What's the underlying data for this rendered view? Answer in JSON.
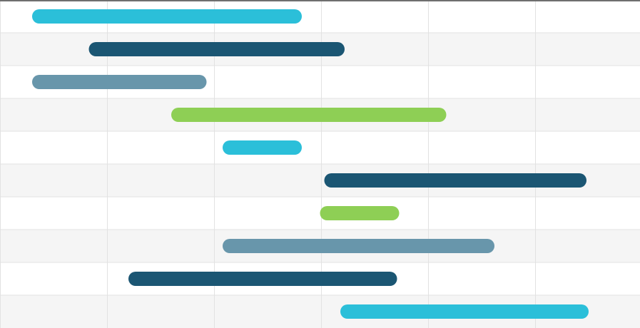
{
  "chart_data": {
    "type": "bar",
    "orientation": "horizontal-range",
    "title": "",
    "xlabel": "",
    "ylabel": "",
    "grid": true,
    "x_range": [
      0,
      6
    ],
    "row_count": 10,
    "row_colors": [
      "#ffffff",
      "#f5f5f5"
    ],
    "grid_color": "#e2e2e2",
    "top_border_color": "#6f6f6f",
    "palette": {
      "cyan": "#2bbfd9",
      "navy": "#1b5673",
      "slate": "#6896ab",
      "green": "#8ecf55"
    },
    "tasks": [
      {
        "start": 0.3,
        "end": 2.82,
        "color": "cyan"
      },
      {
        "start": 0.83,
        "end": 3.22,
        "color": "navy"
      },
      {
        "start": 0.3,
        "end": 1.93,
        "color": "slate"
      },
      {
        "start": 1.6,
        "end": 4.17,
        "color": "green"
      },
      {
        "start": 2.08,
        "end": 2.82,
        "color": "cyan"
      },
      {
        "start": 3.03,
        "end": 5.48,
        "color": "navy"
      },
      {
        "start": 2.99,
        "end": 3.73,
        "color": "green"
      },
      {
        "start": 2.08,
        "end": 4.62,
        "color": "slate"
      },
      {
        "start": 1.2,
        "end": 3.71,
        "color": "navy"
      },
      {
        "start": 3.18,
        "end": 5.5,
        "color": "cyan"
      }
    ]
  }
}
